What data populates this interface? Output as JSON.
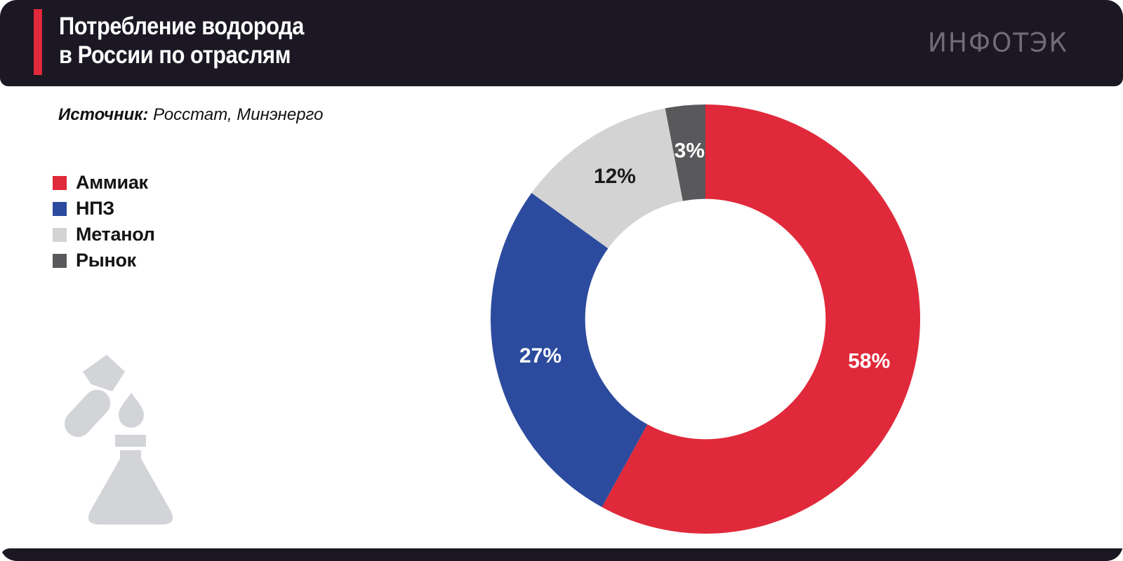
{
  "header": {
    "title_line1": "Потребление водорода",
    "title_line2": "в России по отраслям",
    "logo_text": "ИНФОТЭК"
  },
  "source": {
    "label": "Источник:",
    "value": "Росстат, Минэнерго"
  },
  "colors": {
    "header_bg": "#1b1723",
    "accent": "#e0293a",
    "logo_gray": "#6f6b77",
    "icon_gray": "#d3d4d8",
    "text_dark": "#141414"
  },
  "chart_data": {
    "type": "pie",
    "variant": "donut",
    "title": "Потребление водорода в России по отраслям",
    "source": "Росстат, Минэнерго",
    "unit": "%",
    "direction": "clockwise",
    "start_angle_deg": 0,
    "donut_hole_ratio": 0.56,
    "legend_position": "left",
    "slices": [
      {
        "label": "Аммиак",
        "value": 58,
        "value_label": "58%",
        "color": "#e0293a",
        "value_label_color": "#ffffff"
      },
      {
        "label": "НПЗ",
        "value": 27,
        "value_label": "27%",
        "color": "#2c4b9e",
        "value_label_color": "#ffffff"
      },
      {
        "label": "Метанол",
        "value": 12,
        "value_label": "12%",
        "color": "#d3d3d3",
        "value_label_color": "#1a1a1a"
      },
      {
        "label": "Рынок",
        "value": 3,
        "value_label": "3%",
        "color": "#59585b",
        "value_label_color": "#ffffff"
      }
    ]
  }
}
